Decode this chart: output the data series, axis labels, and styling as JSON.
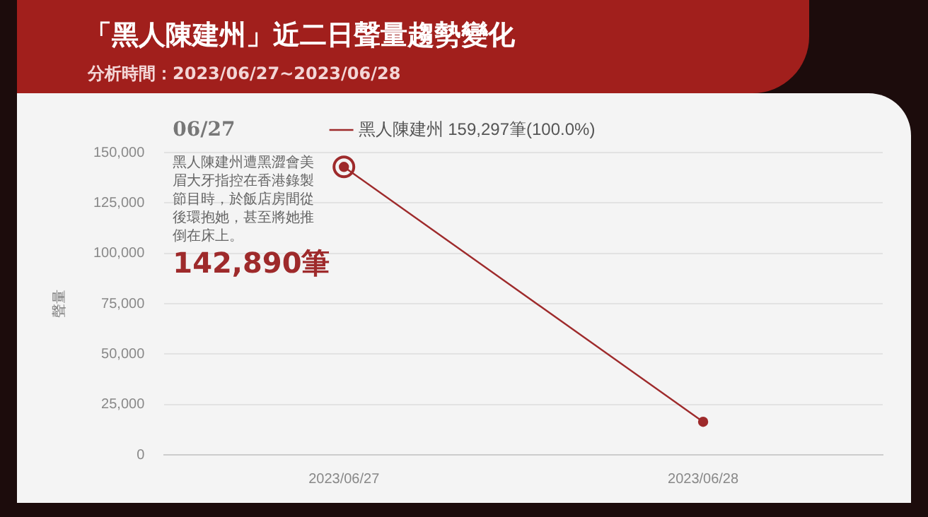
{
  "chart_data": {
    "type": "line",
    "title": "「黑人陳建州」近二日聲量趨勢變化",
    "subtitle": "分析時間：2023/06/27~2023/06/28",
    "ylabel": "聲量",
    "categories": [
      "2023/06/27",
      "2023/06/28"
    ],
    "series": [
      {
        "name": "黑人陳建州 159,297筆(100.0%)",
        "color": "#9e2a2b",
        "values": [
          142890,
          16407
        ]
      }
    ],
    "ylim": [
      0,
      150000
    ],
    "yticks": [
      {
        "value": 0,
        "label": "0"
      },
      {
        "value": 25000,
        "label": "25,000"
      },
      {
        "value": 50000,
        "label": "50,000"
      },
      {
        "value": 75000,
        "label": "75,000"
      },
      {
        "value": 100000,
        "label": "100,000"
      },
      {
        "value": 125000,
        "label": "125,000"
      },
      {
        "value": 150000,
        "label": "150,000"
      }
    ],
    "grid": "y",
    "legend": "top",
    "marker": "circle",
    "line_style": "solid",
    "annotations": [
      "06/27",
      "黑人陳建州遭黑澀會美眉大牙指控在香港錄製節目時，於飯店房間從後環抱她，甚至將她推倒在床上。",
      "142,890筆"
    ]
  }
}
